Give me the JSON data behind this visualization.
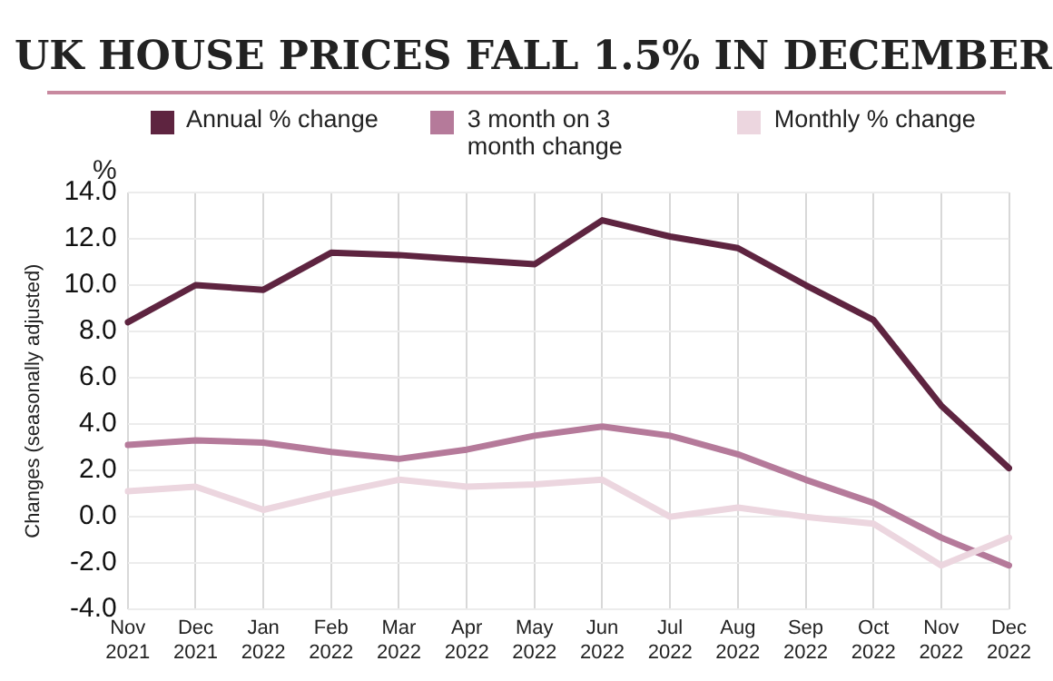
{
  "chart_data": {
    "type": "line",
    "title": "UK HOUSE PRICES FALL 1.5% IN DECEMBER",
    "ylabel": "Changes (seasonally adjusted)",
    "annotations": [
      "%"
    ],
    "categories": [
      "Nov 2021",
      "Dec 2021",
      "Jan 2022",
      "Feb 2022",
      "Mar 2022",
      "Apr 2022",
      "May 2022",
      "Jun 2022",
      "Jul 2022",
      "Aug 2022",
      "Sep 2022",
      "Oct 2022",
      "Nov 2022",
      "Dec 2022"
    ],
    "series": [
      {
        "name": "Annual % change",
        "color": "#5e2440",
        "values": [
          8.4,
          10.0,
          9.8,
          11.4,
          11.3,
          11.1,
          10.9,
          12.8,
          12.1,
          11.6,
          10.0,
          8.5,
          4.8,
          2.1
        ]
      },
      {
        "name": "3 month on 3 month change",
        "color": "#b57a9a",
        "values": [
          3.1,
          3.3,
          3.2,
          2.8,
          2.5,
          2.9,
          3.5,
          3.9,
          3.5,
          2.7,
          1.6,
          0.6,
          -0.9,
          -2.1
        ]
      },
      {
        "name": "Monthly % change",
        "color": "#ecd6df",
        "values": [
          1.1,
          1.3,
          0.3,
          1.0,
          1.6,
          1.3,
          1.4,
          1.6,
          0.0,
          0.4,
          0.0,
          -0.3,
          -2.1,
          -0.9
        ]
      }
    ],
    "ylim": [
      -4,
      14
    ],
    "yticks": [
      {
        "value": -4,
        "label": "-4.0"
      },
      {
        "value": -2,
        "label": "-2.0"
      },
      {
        "value": 0,
        "label": "0.0"
      },
      {
        "value": 2,
        "label": "2.0"
      },
      {
        "value": 4,
        "label": "4.0"
      },
      {
        "value": 6,
        "label": "6.0"
      },
      {
        "value": 8,
        "label": "8.0"
      },
      {
        "value": 10,
        "label": "10.0"
      },
      {
        "value": 12,
        "label": "12.0"
      },
      {
        "value": 14,
        "label": "14.0"
      }
    ],
    "grid": true,
    "legend": "top",
    "marker": "none",
    "line_style": "solid"
  }
}
